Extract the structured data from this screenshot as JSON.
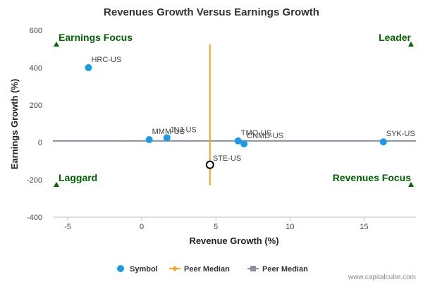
{
  "chart_data": {
    "type": "scatter",
    "title": "Revenues Growth Versus Earnings Growth",
    "xlabel": "Revenue Growth (%)",
    "ylabel": "Earnings Growth (%)",
    "xlim": [
      -6,
      18.5
    ],
    "ylim": [
      -400,
      600
    ],
    "x_ticks": [
      -5,
      0,
      5,
      10,
      15
    ],
    "y_ticks": [
      -400,
      -200,
      0,
      200,
      400,
      600
    ],
    "grid": false,
    "points": [
      {
        "label": "HRC-US",
        "x": -3.6,
        "y": 400,
        "highlight": false
      },
      {
        "label": "MMM-US",
        "x": 0.5,
        "y": 15,
        "highlight": false
      },
      {
        "label": "JNJ-US",
        "x": 1.7,
        "y": 25,
        "highlight": false
      },
      {
        "label": "TMO-US",
        "x": 6.5,
        "y": 8,
        "highlight": false
      },
      {
        "label": "CNMD-US",
        "x": 6.9,
        "y": -8,
        "highlight": false
      },
      {
        "label": "SYK-US",
        "x": 16.3,
        "y": 3,
        "highlight": false
      },
      {
        "label": "STE-US",
        "x": 4.6,
        "y": -120,
        "highlight": true
      }
    ],
    "peer_median_revenue": 4.6,
    "peer_median_revenue_range": [
      -230,
      525
    ],
    "peer_median_earnings": 8,
    "quadrants": {
      "top_left": "Earnings Focus",
      "top_right": "Leader",
      "bottom_left": "Laggard",
      "bottom_right": "Revenues Focus"
    },
    "legend": {
      "placement": "bottom",
      "items": [
        {
          "label": "Symbol",
          "color": "#1a9be6",
          "marker": "circle"
        },
        {
          "label": "Peer Median",
          "color": "#f5a623",
          "marker": "diamond-line"
        },
        {
          "label": "Peer Median",
          "color": "#8a8fa3",
          "marker": "square-line"
        }
      ]
    },
    "colors": {
      "point": "#1a9be6",
      "highlight_stroke": "#000000",
      "revenue_median": "#f5a623",
      "earnings_median": "#8a8fa3",
      "quadrant_marker": "#006400"
    }
  },
  "credit": "www.capitalcube.com"
}
